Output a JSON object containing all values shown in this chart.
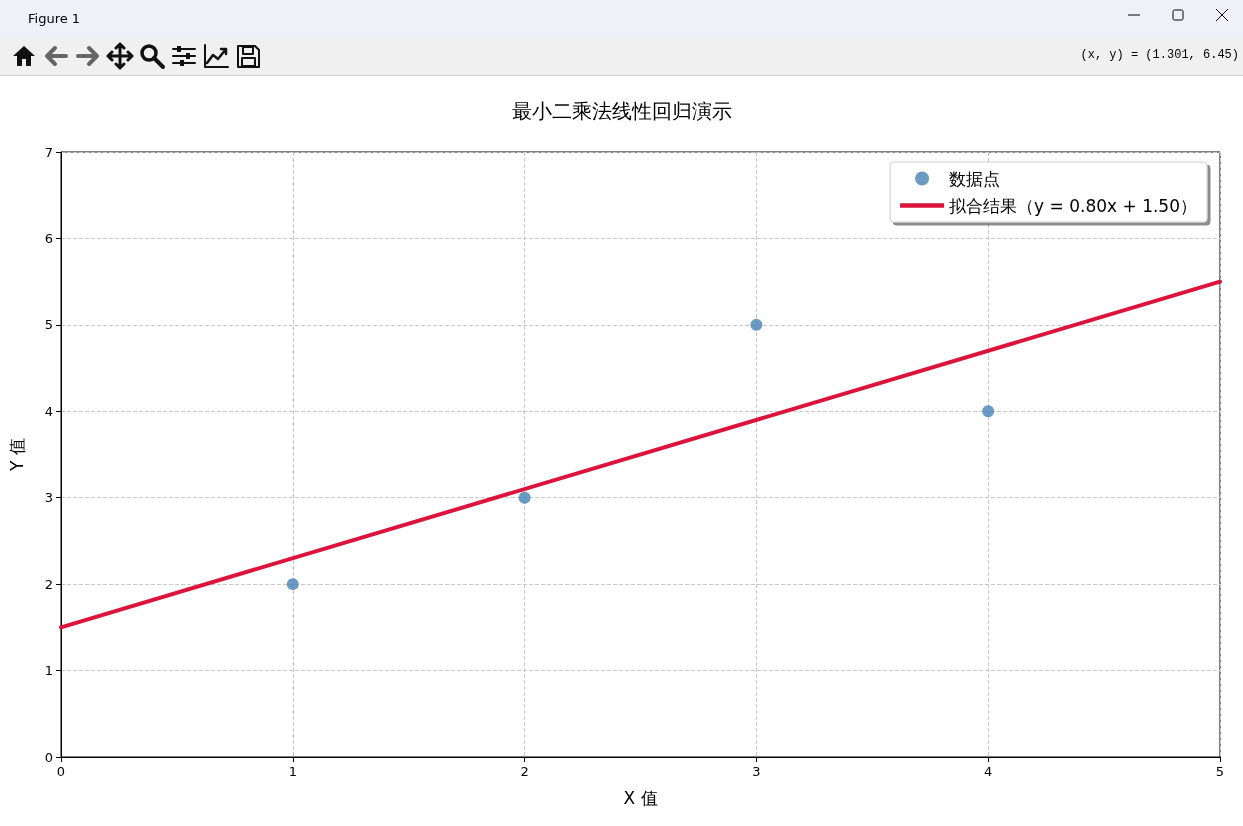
{
  "chart_data": {
    "type": "scatter",
    "title": "最小二乘法线性回归演示",
    "xlabel": "X 值",
    "ylabel": "Y 值",
    "annotations": [
      "Figure 1",
      "(x, y) = (1.301, 6.45)"
    ],
    "series": [
      {
        "name": "数据点",
        "color": "#4682b4",
        "marker": "circle",
        "x": [
          1,
          2,
          3,
          4
        ],
        "values": [
          2,
          3,
          5,
          4
        ]
      },
      {
        "name": "拟合结果（y = 0.80x + 1.50）",
        "type": "line",
        "color": "#dc143c",
        "marker": "none",
        "line_style": "solid",
        "x": [
          0,
          5
        ],
        "values": [
          1.5,
          5.5
        ]
      }
    ],
    "xlim": [
      0,
      5
    ],
    "xticks": [
      0,
      1,
      2,
      3,
      4,
      5
    ],
    "ylim": [
      0,
      7
    ],
    "yticks": [
      0,
      1,
      2,
      3,
      4,
      5,
      6,
      7
    ],
    "grid": true,
    "legend": "top right"
  }
}
